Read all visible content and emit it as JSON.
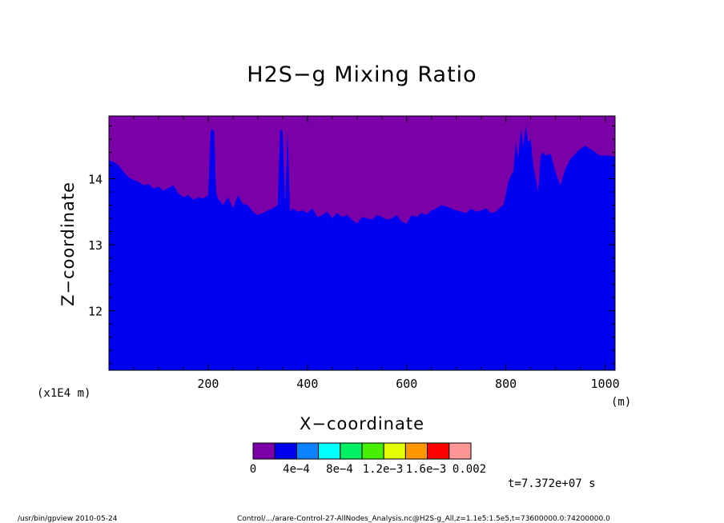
{
  "chart_data": {
    "type": "area",
    "title": "H2S−g Mixing Ratio",
    "xlabel": "X−coordinate",
    "ylabel": "Z−coordinate",
    "x_unit": "(m)",
    "y_unit": "(x1E4 m)",
    "xlim": [
      0,
      1020
    ],
    "ylim": [
      11.1,
      14.95
    ],
    "x_ticks": [
      200,
      400,
      600,
      800,
      1000
    ],
    "y_ticks": [
      12,
      13,
      14
    ],
    "time_label": "t=7.372e+07 s",
    "fill_colors": {
      "lower": "#0000f0",
      "upper": "#7b00a8"
    },
    "boundary": {
      "description_free": true,
      "x": [
        0,
        10,
        20,
        30,
        40,
        50,
        60,
        70,
        80,
        90,
        100,
        110,
        120,
        130,
        140,
        150,
        160,
        170,
        180,
        190,
        200,
        205,
        208,
        212,
        216,
        220,
        225,
        230,
        240,
        250,
        255,
        260,
        270,
        280,
        290,
        300,
        310,
        320,
        330,
        340,
        345,
        350,
        355,
        360,
        365,
        370,
        380,
        390,
        400,
        410,
        420,
        430,
        440,
        450,
        460,
        470,
        480,
        490,
        500,
        510,
        520,
        530,
        540,
        550,
        560,
        570,
        580,
        590,
        600,
        610,
        620,
        630,
        640,
        650,
        660,
        670,
        680,
        690,
        700,
        710,
        720,
        730,
        740,
        750,
        760,
        770,
        780,
        790,
        795,
        800,
        805,
        810,
        815,
        820,
        825,
        830,
        835,
        840,
        845,
        850,
        855,
        860,
        865,
        870,
        875,
        880,
        890,
        900,
        910,
        920,
        930,
        940,
        950,
        960,
        970,
        980,
        990,
        1000,
        1010,
        1020
      ],
      "z": [
        14.28,
        14.25,
        14.2,
        14.1,
        14.02,
        13.98,
        13.95,
        13.9,
        13.92,
        13.85,
        13.88,
        13.82,
        13.86,
        13.9,
        13.78,
        13.72,
        13.75,
        13.68,
        13.72,
        13.7,
        13.75,
        14.72,
        14.75,
        14.72,
        13.8,
        13.7,
        13.65,
        13.6,
        13.72,
        13.55,
        13.65,
        13.75,
        13.62,
        13.6,
        13.5,
        13.45,
        13.48,
        13.52,
        13.55,
        13.6,
        14.75,
        14.72,
        13.6,
        14.75,
        13.5,
        13.55,
        13.5,
        13.52,
        13.48,
        13.55,
        13.42,
        13.45,
        13.5,
        13.4,
        13.48,
        13.42,
        13.45,
        13.38,
        13.32,
        13.42,
        13.4,
        13.38,
        13.45,
        13.42,
        13.38,
        13.4,
        13.45,
        13.35,
        13.32,
        13.45,
        13.42,
        13.48,
        13.45,
        13.52,
        13.55,
        13.6,
        13.58,
        13.55,
        13.52,
        13.5,
        13.48,
        13.55,
        13.5,
        13.52,
        13.55,
        13.48,
        13.5,
        13.58,
        13.6,
        13.78,
        13.95,
        14.05,
        14.1,
        14.55,
        14.3,
        14.75,
        14.5,
        14.8,
        14.55,
        14.6,
        14.2,
        14.0,
        13.8,
        14.35,
        14.4,
        14.35,
        14.38,
        14.1,
        13.9,
        14.15,
        14.3,
        14.38,
        14.45,
        14.5,
        14.45,
        14.4,
        14.35,
        14.35,
        14.35,
        14.33
      ]
    },
    "colorbar": {
      "colors": [
        "#7b00a8",
        "#0000f0",
        "#0a82ff",
        "#00ffff",
        "#00f064",
        "#46f000",
        "#e6ff00",
        "#ff9600",
        "#ff0000",
        "#ff9696"
      ],
      "labels": [
        "0",
        "4e−4",
        "8e−4",
        "1.2e−3",
        "1.6e−3",
        "0.002"
      ]
    }
  },
  "footer": {
    "left": "/usr/bin/gpview  2010-05-24",
    "right": "Control/.../arare-Control-27-AllNodes_Analysis.nc@H2S-g_All,z=1.1e5:1.5e5,t=73600000.0:74200000.0"
  }
}
